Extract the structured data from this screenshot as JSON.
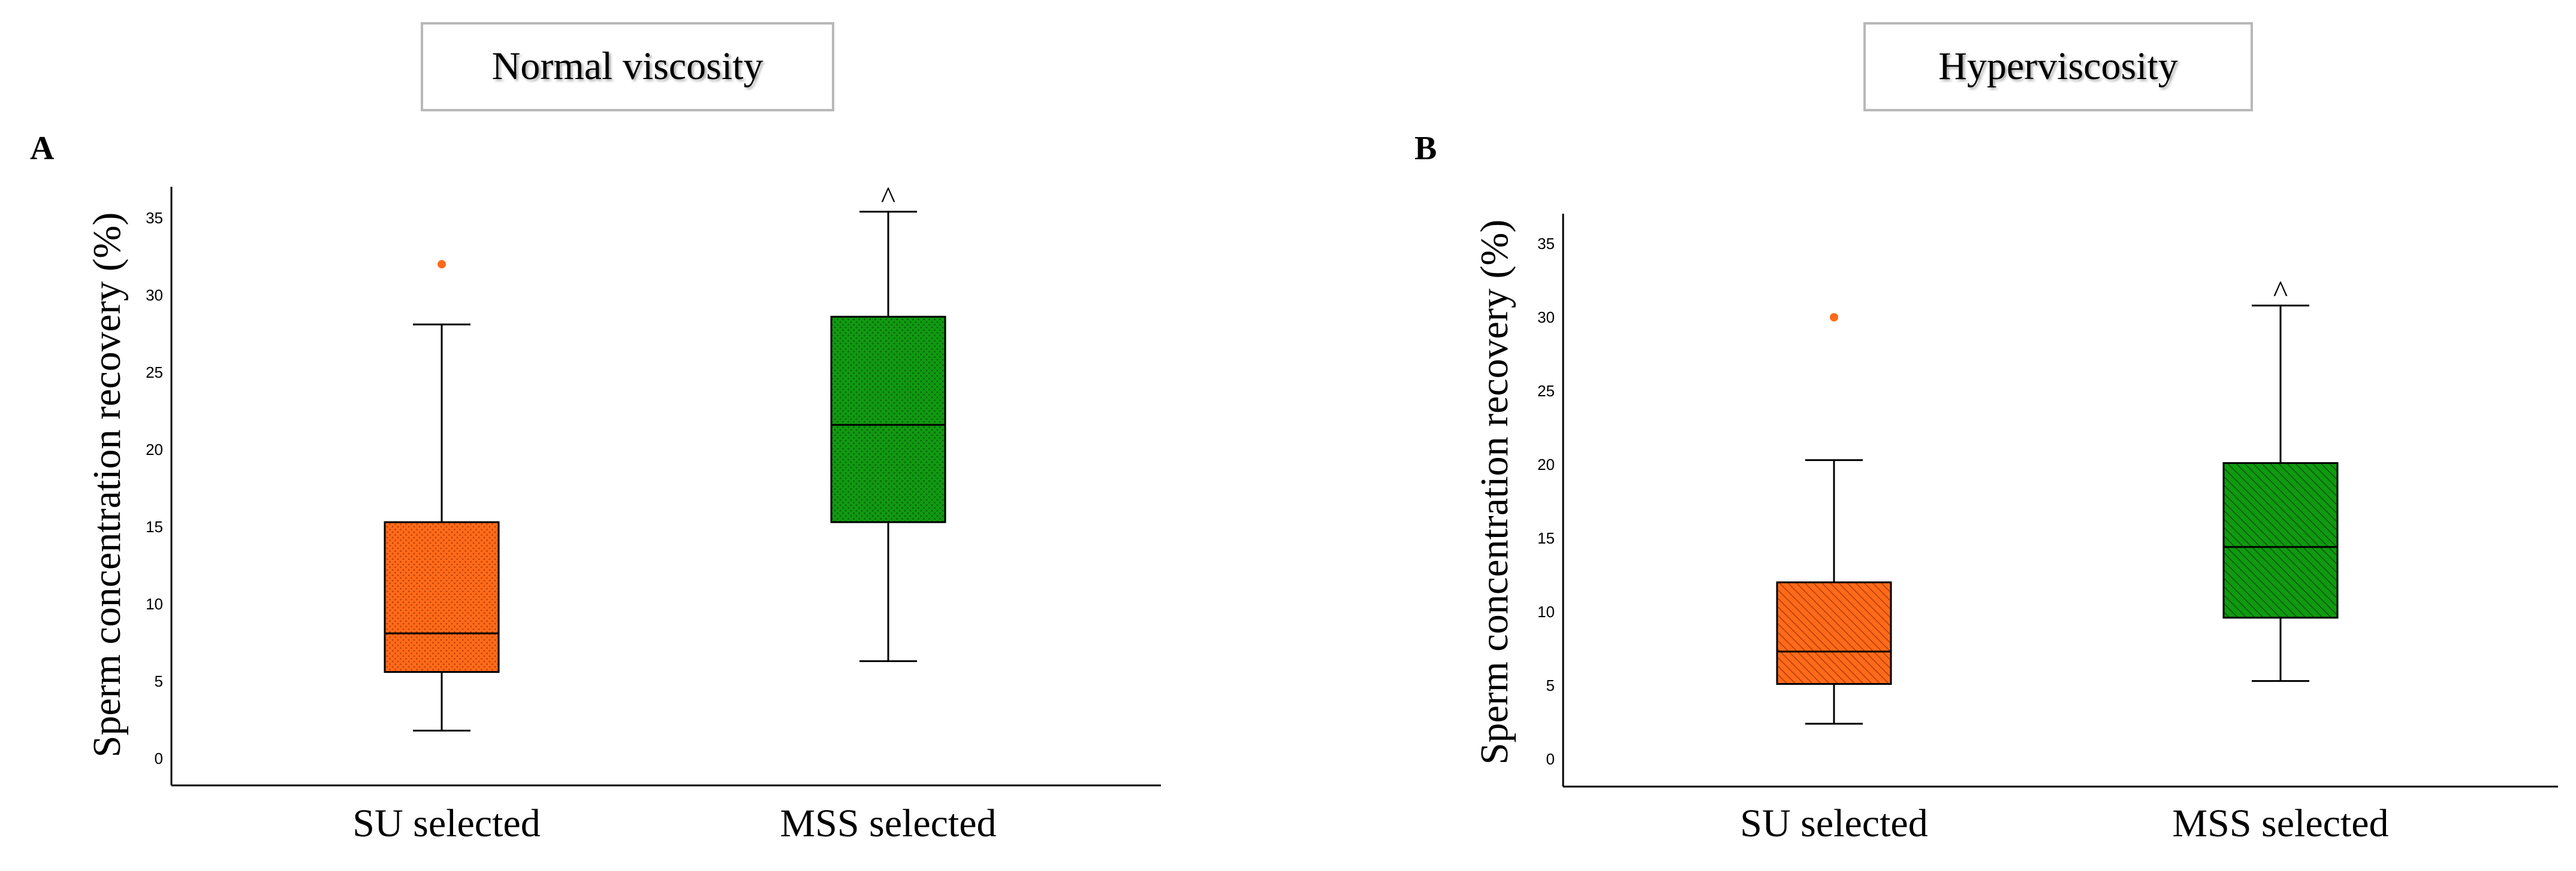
{
  "chart_data": [
    {
      "type": "box",
      "panel_label": "A",
      "title": "Normal viscosity",
      "ylabel": "Sperm concentration  recovery (%)",
      "ylim": [
        0,
        35
      ],
      "yticks": [
        0,
        5,
        10,
        15,
        20,
        25,
        30,
        35
      ],
      "grid": false,
      "categories": [
        "SU selected",
        "MSS selected"
      ],
      "boxes": [
        {
          "category": "SU selected",
          "color": "#ff6a1a",
          "pattern": "dots",
          "whisker_low": 1.8,
          "q1": 5.6,
          "median": 8.1,
          "q3": 15.3,
          "whisker_high": 28.1,
          "outliers": [
            32.0
          ],
          "annotation": ""
        },
        {
          "category": "MSS selected",
          "color": "#119911",
          "pattern": "dots",
          "whisker_low": 6.3,
          "q1": 15.3,
          "median": 21.6,
          "q3": 28.6,
          "whisker_high": 35.4,
          "outliers": [],
          "annotation": "^"
        }
      ]
    },
    {
      "type": "box",
      "panel_label": "B",
      "title": "Hyperviscosity",
      "ylabel": "Sperm concentration  recovery (%)",
      "ylim": [
        0,
        35
      ],
      "yticks": [
        0,
        5,
        10,
        15,
        20,
        25,
        30,
        35
      ],
      "grid": false,
      "categories": [
        "SU selected",
        "MSS selected"
      ],
      "boxes": [
        {
          "category": "SU selected",
          "color": "#ff6a1a",
          "pattern": "stripes",
          "whisker_low": 2.4,
          "q1": 5.1,
          "median": 7.3,
          "q3": 12.0,
          "whisker_high": 20.3,
          "outliers": [
            30.0
          ],
          "annotation": ""
        },
        {
          "category": "MSS selected",
          "color": "#119911",
          "pattern": "stripes",
          "whisker_low": 5.3,
          "q1": 9.6,
          "median": 14.4,
          "q3": 20.1,
          "whisker_high": 30.8,
          "outliers": [],
          "annotation": "^"
        }
      ]
    }
  ]
}
